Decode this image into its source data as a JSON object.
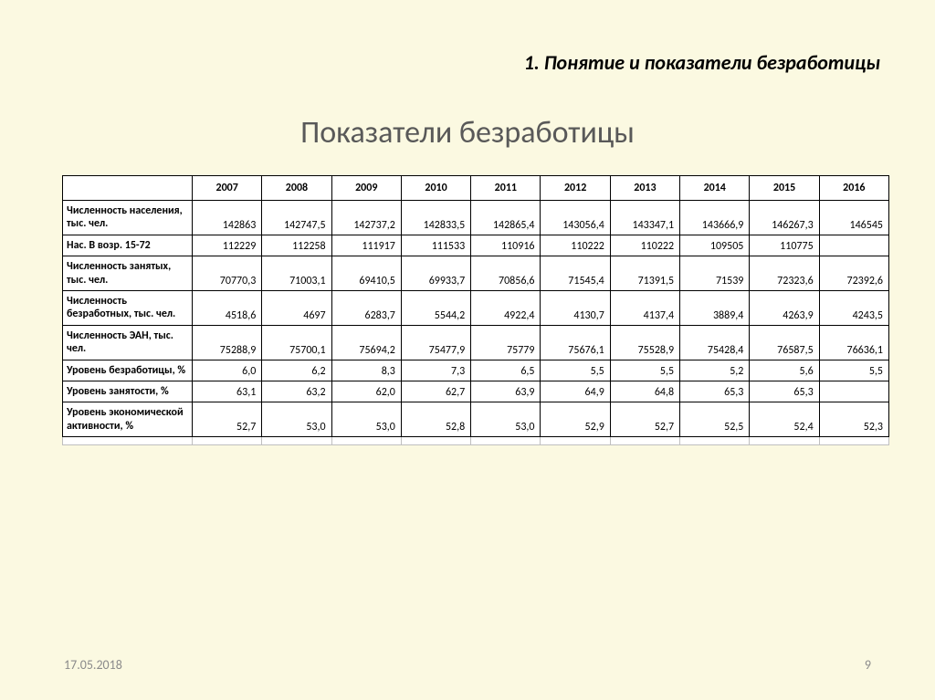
{
  "section_header": "1. Понятие и показатели безработицы",
  "main_title": "Показатели безработицы",
  "footer": {
    "date": "17.05.2018",
    "page": "9"
  },
  "table": {
    "columns": [
      "2007",
      "2008",
      "2009",
      "2010",
      "2011",
      "2012",
      "2013",
      "2014",
      "2015",
      "2016"
    ],
    "rows": [
      {
        "label": "Численность населения, тыс. чел.",
        "cells": [
          "142863",
          "142747,5",
          "142737,2",
          "142833,5",
          "142865,4",
          "143056,4",
          "143347,1",
          "143666,9",
          "146267,3",
          "146545"
        ]
      },
      {
        "label": "Нас. В возр. 15-72",
        "cells": [
          "112229",
          "112258",
          "111917",
          "111533",
          "110916",
          "110222",
          "110222",
          "109505",
          "110775",
          ""
        ]
      },
      {
        "label": "Численность занятых, тыс. чел.",
        "cells": [
          "70770,3",
          "71003,1",
          "69410,5",
          "69933,7",
          "70856,6",
          "71545,4",
          "71391,5",
          "71539",
          "72323,6",
          "72392,6"
        ]
      },
      {
        "label": "Численность безработных, тыс. чел.",
        "cells": [
          "4518,6",
          "4697",
          "6283,7",
          "5544,2",
          "4922,4",
          "4130,7",
          "4137,4",
          "3889,4",
          "4263,9",
          "4243,5"
        ]
      },
      {
        "label": "Численность ЭАН, тыс. чел.",
        "cells": [
          "75288,9",
          "75700,1",
          "75694,2",
          "75477,9",
          "75779",
          "75676,1",
          "75528,9",
          "75428,4",
          "76587,5",
          "76636,1"
        ]
      },
      {
        "label": "Уровень безработицы, %",
        "cells": [
          "6,0",
          "6,2",
          "8,3",
          "7,3",
          "6,5",
          "5,5",
          "5,5",
          "5,2",
          "5,6",
          "5,5"
        ]
      },
      {
        "label": "Уровень занятости, %",
        "cells": [
          "63,1",
          "63,2",
          "62,0",
          "62,7",
          "63,9",
          "64,9",
          "64,8",
          "65,3",
          "65,3",
          ""
        ]
      },
      {
        "label": "Уровень экономической активности, %",
        "cells": [
          "52,7",
          "53,0",
          "53,0",
          "52,8",
          "53,0",
          "52,9",
          "52,7",
          "52,5",
          "52,4",
          "52,3"
        ]
      }
    ],
    "styles": {
      "header_fontsize": 12,
      "cell_fontsize": 12,
      "border_color": "#000000",
      "background": "#ffffff",
      "label_align": "left",
      "value_align": "right"
    }
  },
  "colors": {
    "slide_bg": "#fbf9e1",
    "title_text": "#595959",
    "footer_text": "#8b8b8b",
    "text": "#000000"
  },
  "typography": {
    "section_header_fontsize": 22,
    "main_title_fontsize": 34,
    "footer_fontsize": 14,
    "font_family": "Calibri"
  }
}
